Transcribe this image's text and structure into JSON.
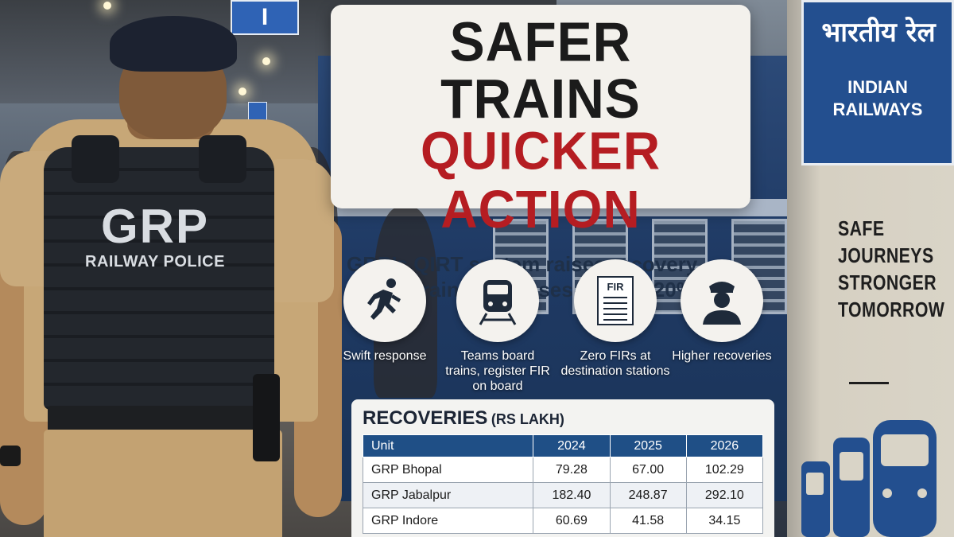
{
  "headline": {
    "line1": "SAFER TRAINS",
    "line2": "QUICKER ACTION",
    "subtitle": "GRP’s QIRT system raises recovery rate in train theft cases to over 20%",
    "line1_color": "#1b1b1b",
    "line2_color": "#b51d22"
  },
  "officer_vest": {
    "title": "GRP",
    "subtitle": "RAILWAY POLICE"
  },
  "features": [
    {
      "icon": "running-person-icon",
      "label": "Swift response"
    },
    {
      "icon": "train-icon",
      "label": "Teams board trains, register FIR on board"
    },
    {
      "icon": "fir-document-icon",
      "icon_text": "FIR",
      "label": "Zero FIRs at destination stations"
    },
    {
      "icon": "police-officer-icon",
      "label": "Higher recoveries"
    }
  ],
  "recoveries": {
    "title": "RECOVERIES",
    "unit": "(RS LAKH)",
    "columns": [
      "Unit",
      "2024",
      "2025",
      "2026"
    ],
    "rows": [
      [
        "GRP Bhopal",
        "79.28",
        "67.00",
        "102.29"
      ],
      [
        "GRP Jabalpur",
        "182.40",
        "248.87",
        "292.10"
      ],
      [
        "GRP Indore",
        "60.69",
        "41.58",
        "34.15"
      ]
    ],
    "header_color": "#1f4f86"
  },
  "signboard": {
    "hindi": "भारतीय रेल",
    "english": "INDIAN RAILWAYS",
    "message": [
      "SAFE",
      "JOURNEYS",
      "STRONGER",
      "TOMORROW"
    ],
    "color": "#234f8f"
  },
  "platform_sign": {
    "text": "I"
  }
}
